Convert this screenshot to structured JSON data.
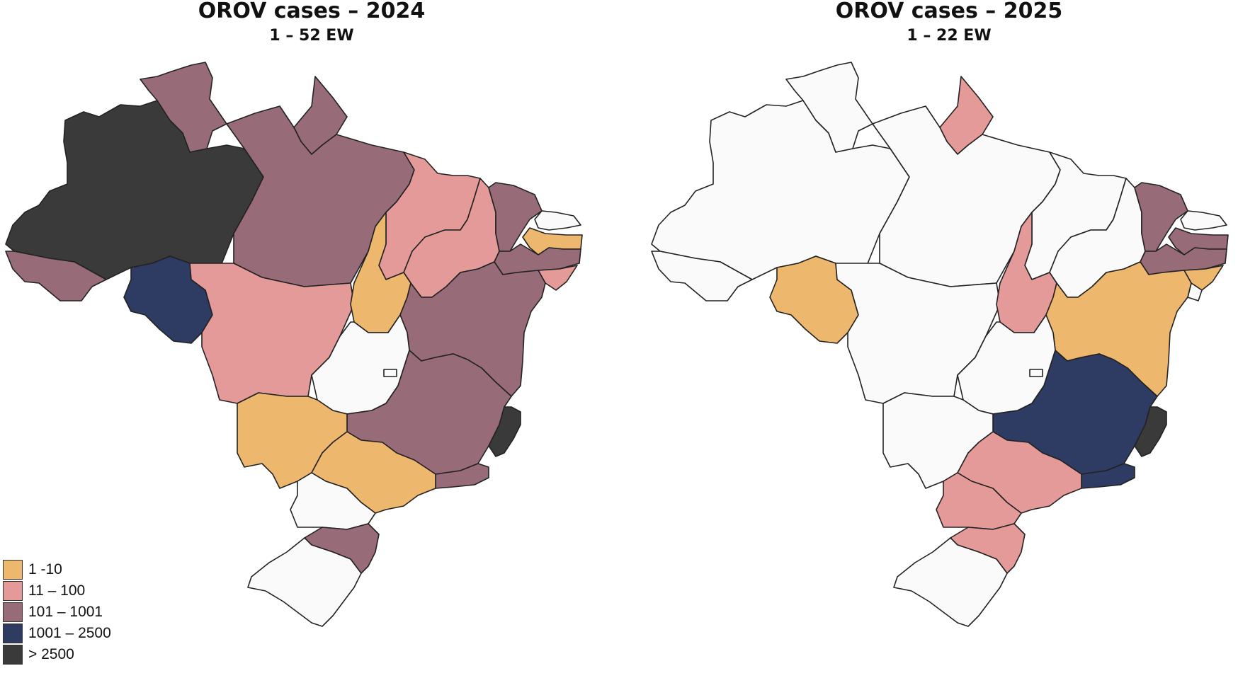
{
  "panels": {
    "left": {
      "title": "OROV cases – 2024",
      "subtitle": "1 – 52 EW"
    },
    "right": {
      "title": "OROV cases – 2025",
      "subtitle": "1 – 22 EW"
    }
  },
  "legend": [
    {
      "label": "1 -10",
      "color": "#EDB86E"
    },
    {
      "label": "11 – 100",
      "color": "#E59A9A"
    },
    {
      "label": "101 – 1001",
      "color": "#976B78"
    },
    {
      "label": "1001 – 2500",
      "color": "#2E3B62"
    },
    {
      "label": "> 2500",
      "color": "#3A3A3A"
    }
  ],
  "colors": {
    "none": "#FAFAFA",
    "c1": "#EDB86E",
    "c2": "#E59A9A",
    "c3": "#976B78",
    "c4": "#2E3B62",
    "c5": "#3A3A3A"
  }
}
